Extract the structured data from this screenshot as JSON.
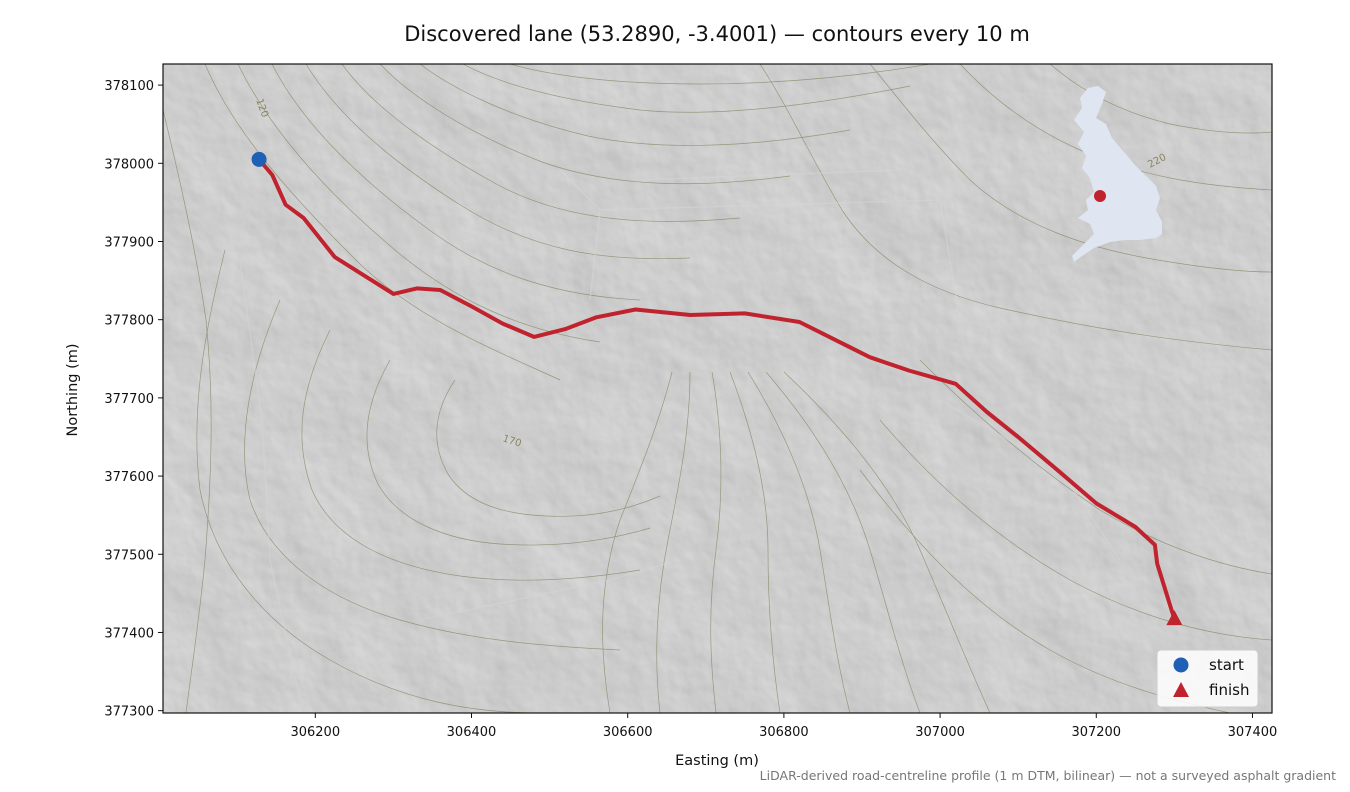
{
  "title": "Discovered lane (53.2890, -3.4001) — contours every 10 m",
  "footnote": "LiDAR-derived road-centreline profile (1 m DTM, bilinear) — not a surveyed asphalt gradient",
  "axes": {
    "xlabel": "Easting (m)",
    "ylabel": "Northing (m)",
    "xlim": [
      306005,
      307425
    ],
    "ylim": [
      377297,
      378127
    ],
    "xticks": [
      "306200",
      "306400",
      "306600",
      "306800",
      "307000",
      "307200",
      "307400"
    ],
    "yticks": [
      "378100",
      "378000",
      "377900",
      "377800",
      "377700",
      "377600",
      "377500",
      "377400",
      "377300"
    ]
  },
  "contour_labels": [
    "120",
    "170",
    "220"
  ],
  "legend": {
    "placement": "bottom-right",
    "start_label": "start",
    "finish_label": "finish"
  },
  "colors": {
    "route": "#c0232d",
    "start_marker": "#1f5fb4",
    "finish_marker": "#c0232d",
    "inset_land": "#dfe6f2",
    "inset_point": "#c0232d",
    "hillshade": "#bdbdbd",
    "contour": "#7a7a52"
  },
  "route": {
    "start": {
      "easting": 306128,
      "northing": 378005
    },
    "finish": {
      "easting": 307300,
      "northing": 377417
    },
    "points": [
      [
        306128,
        378005
      ],
      [
        306145,
        377985
      ],
      [
        306162,
        377947
      ],
      [
        306185,
        377930
      ],
      [
        306225,
        377880
      ],
      [
        306260,
        377858
      ],
      [
        306300,
        377833
      ],
      [
        306330,
        377840
      ],
      [
        306360,
        377838
      ],
      [
        306400,
        377817
      ],
      [
        306440,
        377795
      ],
      [
        306480,
        377778
      ],
      [
        306520,
        377788
      ],
      [
        306560,
        377803
      ],
      [
        306610,
        377813
      ],
      [
        306680,
        377806
      ],
      [
        306750,
        377808
      ],
      [
        306820,
        377797
      ],
      [
        306870,
        377772
      ],
      [
        306910,
        377752
      ],
      [
        306960,
        377735
      ],
      [
        307020,
        377718
      ],
      [
        307060,
        377682
      ],
      [
        307100,
        377650
      ],
      [
        307150,
        377608
      ],
      [
        307200,
        377565
      ],
      [
        307250,
        377535
      ],
      [
        307275,
        377512
      ],
      [
        307278,
        377488
      ],
      [
        307300,
        377417
      ]
    ]
  },
  "inset": {
    "icon": "great-britain-locator-map",
    "location": {
      "lat": 53.289,
      "lon": -3.4001
    }
  }
}
